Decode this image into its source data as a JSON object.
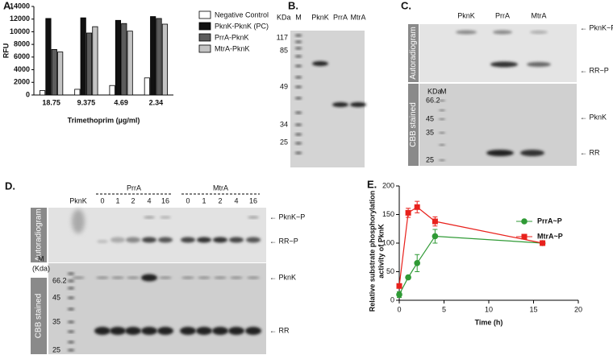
{
  "chart_data": [
    {
      "type": "bar",
      "label": "A.",
      "ylabel": "RFU",
      "xlabel": "Trimethoprim (µg/ml)",
      "categories": [
        "18.75",
        "9.375",
        "4.69",
        "2.34"
      ],
      "series": [
        {
          "name": "Negative Control",
          "color": "#ffffff",
          "values": [
            700,
            900,
            1500,
            2700
          ]
        },
        {
          "name": "PknK-PknK (PC)",
          "color": "#111111",
          "values": [
            12100,
            12200,
            11800,
            12400
          ]
        },
        {
          "name": "PrrA-PknK",
          "color": "#5c5c5c",
          "values": [
            7200,
            9800,
            11300,
            12100
          ]
        },
        {
          "name": "MtrA-PknK",
          "color": "#c4c4c4",
          "values": [
            6800,
            10800,
            10100,
            11200
          ]
        }
      ],
      "ylim": [
        0,
        14000
      ],
      "yticks": [
        0,
        2000,
        4000,
        6000,
        8000,
        10000,
        12000,
        14000
      ]
    },
    {
      "type": "line",
      "label": "E.",
      "ylabel": [
        "Relative substrate phosphorylation",
        "activity of PknK"
      ],
      "xlabel": "Time (h)",
      "series": [
        {
          "name": "PrrA~P",
          "color": "#2f9a35",
          "marker": "circle",
          "x": [
            0,
            1,
            2,
            4,
            16
          ],
          "values": [
            10,
            40,
            65,
            112,
            100
          ],
          "errors": [
            5,
            3,
            15,
            12,
            2
          ]
        },
        {
          "name": "MtrA~P",
          "color": "#e8211c",
          "marker": "square",
          "x": [
            0,
            1,
            2,
            4,
            16
          ],
          "values": [
            25,
            153,
            163,
            138,
            100
          ],
          "errors": [
            3,
            8,
            10,
            8,
            2
          ]
        }
      ],
      "xlim": [
        0,
        20
      ],
      "xticks": [
        0,
        5,
        10,
        15,
        20
      ],
      "ylim": [
        0,
        200
      ],
      "yticks": [
        0,
        50,
        100,
        150,
        200
      ]
    }
  ],
  "gels": {
    "B": {
      "label": "B.",
      "unit": "KDa",
      "lanes": [
        "M",
        "PknK",
        "PrrA",
        "MtrA"
      ],
      "markers": [
        117,
        85,
        49,
        34,
        25
      ]
    },
    "C": {
      "label": "C.",
      "lanes": [
        "PknK",
        "PrrA",
        "MtrA"
      ],
      "sections": [
        "Autoradiogram",
        "CBB stained"
      ],
      "unit": "KDa",
      "marker_lane": "M",
      "markers": [
        66.2,
        45,
        35,
        25
      ],
      "arrows": [
        "← PknK~P",
        "← RR~P",
        "← PknK",
        "← RR"
      ]
    },
    "D": {
      "label": "D.",
      "lanes": [
        "PknK"
      ],
      "groups": [
        "PrrA",
        "MtrA"
      ],
      "timepoints": [
        0,
        1,
        2,
        4,
        16
      ],
      "sections": [
        "Autoradiogram",
        "CBB stained"
      ],
      "marker_lane": "M",
      "unit": "(Kda)",
      "markers": [
        66.2,
        45,
        35,
        25
      ],
      "arrows": [
        "← PknK~P",
        "← RR~P",
        "← PknK",
        "← RR"
      ]
    }
  }
}
